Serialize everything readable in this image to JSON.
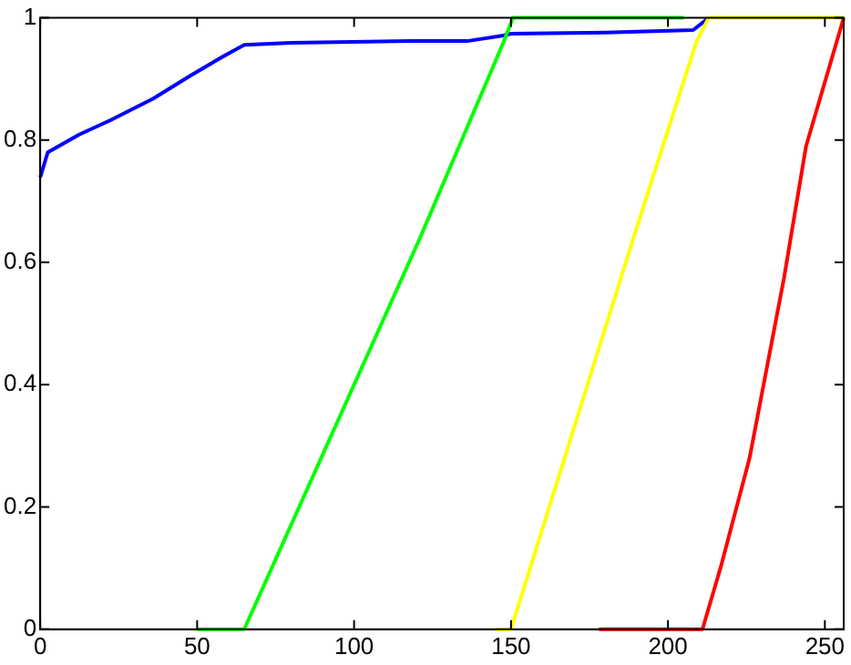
{
  "chart_data": {
    "type": "line",
    "xlim": [
      0,
      256
    ],
    "ylim": [
      0,
      1
    ],
    "xticks": [
      0,
      50,
      100,
      150,
      200,
      250
    ],
    "yticks": [
      0,
      0.2,
      0.4,
      0.6,
      0.8,
      1
    ],
    "grid": false,
    "legend": false,
    "marker": "none",
    "line_style": "solid",
    "series": [
      {
        "color": "#0000ff",
        "x": [
          0,
          2.4,
          12.4,
          22.5,
          36,
          48,
          58,
          65,
          80,
          118,
          136,
          147.6,
          150,
          180,
          208,
          213
        ],
        "values": [
          0.739,
          0.78,
          0.809,
          0.833,
          0.868,
          0.906,
          0.936,
          0.956,
          0.959,
          0.962,
          0.962,
          0.971,
          0.974,
          0.976,
          0.98,
          1
        ]
      },
      {
        "color": "#00ff00",
        "x": [
          50,
          65,
          121,
          147.6,
          150.6,
          205
        ],
        "values": [
          0,
          0,
          0.64,
          0.96,
          1,
          1
        ]
      },
      {
        "color": "#ffff00",
        "x": [
          145,
          150,
          189,
          209,
          213,
          256
        ],
        "values": [
          0,
          0,
          0.64,
          0.96,
          1,
          1
        ]
      },
      {
        "color": "#ff0000",
        "x": [
          178,
          211,
          217,
          226,
          237,
          244,
          254,
          256
        ],
        "values": [
          0,
          0,
          0.105,
          0.28,
          0.575,
          0.79,
          0.965,
          1
        ]
      }
    ]
  }
}
